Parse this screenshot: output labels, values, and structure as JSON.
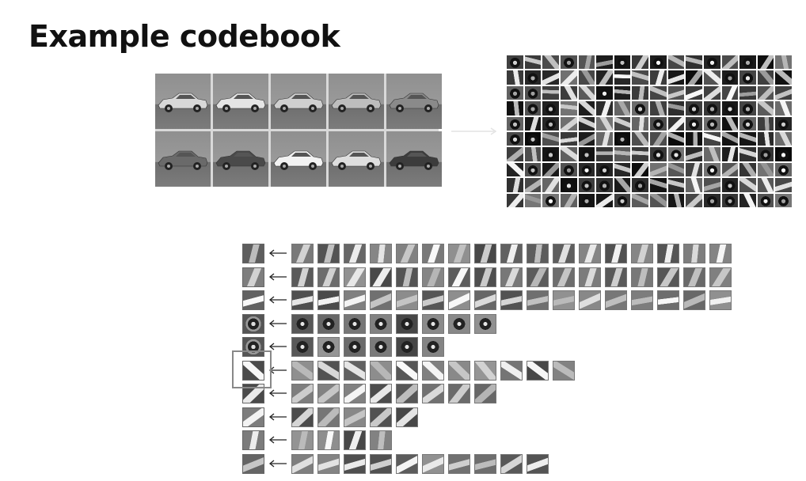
{
  "slide": {
    "title": "Example codebook"
  },
  "car_images": {
    "rows": 2,
    "cols": 5
  },
  "patch_mosaic": {
    "rows": 10,
    "cols": 16
  },
  "codebook_clusters": [
    {
      "members": 17
    },
    {
      "members": 17
    },
    {
      "members": 17
    },
    {
      "members": 8
    },
    {
      "members": 6
    },
    {
      "members": 11
    },
    {
      "members": 8
    },
    {
      "members": 5
    },
    {
      "members": 4
    },
    {
      "members": 10
    }
  ]
}
